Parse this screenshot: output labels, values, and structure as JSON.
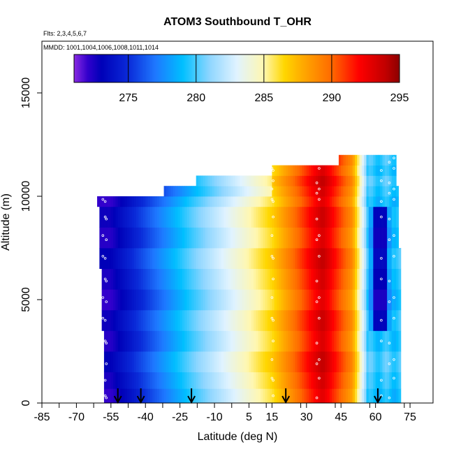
{
  "chart_data": {
    "type": "heatmap",
    "title": "ATOM3 Southbound T_OHR",
    "subtitle_flights": "Flts: 2,3,4,5,6,7",
    "subtitle_dates": "MMDD: 1001,1004,1006,1008,1011,1014",
    "xlabel": "Latitude (deg N)",
    "ylabel": "Altitude (m)",
    "xlim": [
      -85,
      85
    ],
    "ylim": [
      0,
      17500
    ],
    "x_ticks": [
      -85,
      -70,
      -55,
      -40,
      -25,
      -10,
      5,
      15,
      30,
      45,
      60,
      75
    ],
    "x_tick_labels": [
      "-85",
      "-70",
      "-55",
      "-40",
      "-25",
      "-10",
      "5",
      "15",
      "30",
      "45",
      "60",
      "75"
    ],
    "y_ticks": [
      0,
      5000,
      10000,
      15000
    ],
    "y_tick_labels": [
      "0",
      "5000",
      "10000",
      "15000"
    ],
    "colorbar": {
      "range": [
        271,
        295
      ],
      "ticks": [
        275,
        280,
        285,
        290,
        295
      ],
      "tick_labels": [
        "275",
        "280",
        "285",
        "290",
        "295"
      ],
      "colors": [
        {
          "v": 271,
          "c": "#8a2be2"
        },
        {
          "v": 272,
          "c": "#3300cc"
        },
        {
          "v": 273,
          "c": "#0000b8"
        },
        {
          "v": 275,
          "c": "#0a2ad8"
        },
        {
          "v": 277,
          "c": "#1e78ff"
        },
        {
          "v": 279,
          "c": "#00bfff"
        },
        {
          "v": 281,
          "c": "#8fd6ff"
        },
        {
          "v": 283,
          "c": "#e0f3ff"
        },
        {
          "v": 285,
          "c": "#fff7b0"
        },
        {
          "v": 286.5,
          "c": "#ffd700"
        },
        {
          "v": 288,
          "c": "#ffa500"
        },
        {
          "v": 290,
          "c": "#ff6a00"
        },
        {
          "v": 292,
          "c": "#ff0000"
        },
        {
          "v": 294,
          "c": "#c00000"
        },
        {
          "v": 295,
          "c": "#8b0000"
        }
      ]
    },
    "flight_track_markers_lat": [
      -52,
      -42,
      -20,
      21,
      61
    ],
    "bands": [
      {
        "alt_lo": 0,
        "alt_hi": 700,
        "lat_min": -58,
        "lat_max": 71
      },
      {
        "alt_lo": 700,
        "alt_hi": 1500,
        "lat_min": -58,
        "lat_max": 71
      },
      {
        "alt_lo": 1500,
        "alt_hi": 2500,
        "lat_min": -58,
        "lat_max": 71
      },
      {
        "alt_lo": 2500,
        "alt_hi": 3500,
        "lat_min": -58,
        "lat_max": 71
      },
      {
        "alt_lo": 3500,
        "alt_hi": 4500,
        "lat_min": -59,
        "lat_max": 71
      },
      {
        "alt_lo": 4500,
        "alt_hi": 5500,
        "lat_min": -59,
        "lat_max": 71
      },
      {
        "alt_lo": 5500,
        "alt_hi": 6500,
        "lat_min": -59,
        "lat_max": 71
      },
      {
        "alt_lo": 6500,
        "alt_hi": 7500,
        "lat_min": -60,
        "lat_max": 71
      },
      {
        "alt_lo": 7500,
        "alt_hi": 8500,
        "lat_min": -60,
        "lat_max": 70
      },
      {
        "alt_lo": 8500,
        "alt_hi": 9500,
        "lat_min": -60,
        "lat_max": 70
      },
      {
        "alt_lo": 9500,
        "alt_hi": 10000,
        "lat_min": -61,
        "lat_max": 70
      },
      {
        "alt_lo": 10000,
        "alt_hi": 10500,
        "lat_min": -32,
        "lat_max": 70
      },
      {
        "alt_lo": 10500,
        "alt_hi": 11000,
        "lat_min": -18,
        "lat_max": 69
      },
      {
        "alt_lo": 11000,
        "alt_hi": 11500,
        "lat_min": 15,
        "lat_max": 69
      },
      {
        "alt_lo": 11500,
        "alt_hi": 12000,
        "lat_min": 44,
        "lat_max": 69
      }
    ]
  }
}
